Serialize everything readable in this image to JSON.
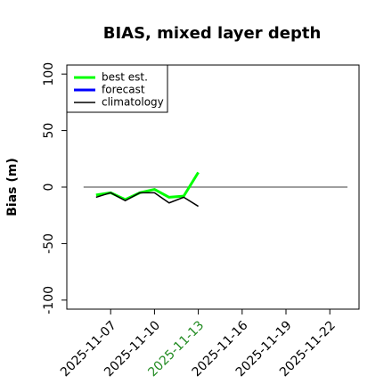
{
  "chart_data": {
    "type": "line",
    "title": "BIAS, mixed layer depth",
    "ylabel": "Bias (m)",
    "x": [
      "2025-11-06",
      "2025-11-07",
      "2025-11-08",
      "2025-11-09",
      "2025-11-10",
      "2025-11-11",
      "2025-11-12",
      "2025-11-13"
    ],
    "series": [
      {
        "name": "best est.",
        "color": "#00ff00",
        "width": 3,
        "values": [
          -7,
          -5,
          -11,
          -5,
          -2,
          -9,
          -8,
          13
        ]
      },
      {
        "name": "forecast",
        "color": "#0000ff",
        "width": 3,
        "values": [
          null,
          null,
          null,
          null,
          null,
          null,
          null,
          null
        ]
      },
      {
        "name": "climatology",
        "color": "#000000",
        "width": 1.5,
        "values": [
          -9,
          -5,
          -12,
          -5,
          -5,
          -14,
          -9,
          -17
        ]
      }
    ],
    "xlim": [
      "2025-11-04",
      "2025-11-24"
    ],
    "xticks": [
      "2025-11-07",
      "2025-11-10",
      "2025-11-13",
      "2025-11-16",
      "2025-11-19",
      "2025-11-22"
    ],
    "xtick_highlight": {
      "index": 2,
      "color": "#228b22"
    },
    "ylim": [
      -108,
      108
    ],
    "yticks": [
      -100,
      -50,
      0,
      50,
      100
    ],
    "hline": 0,
    "legend": "upper left"
  }
}
